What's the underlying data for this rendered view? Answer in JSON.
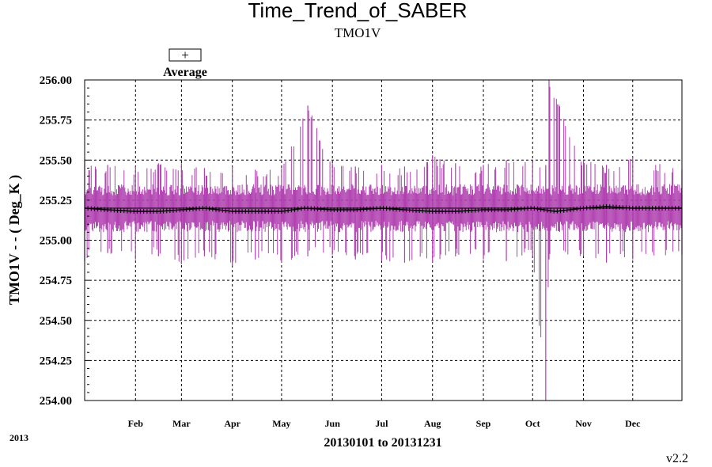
{
  "chart_data": {
    "type": "line",
    "title": "Time_Trend_of_SABER",
    "subtitle": "TMO1V",
    "ylabel": "TMO1V  - - ( Deg_K )",
    "xlabel": "20130101 to 20131231",
    "year_label": "2013",
    "version": "v2.2",
    "legend": {
      "entries": [
        {
          "symbol": "+",
          "label": "Average"
        }
      ],
      "placement": "top-left"
    },
    "ylim": [
      254.0,
      256.0
    ],
    "yticks": [
      "256.00",
      "255.75",
      "255.50",
      "255.25",
      "255.00",
      "254.75",
      "254.50",
      "254.25",
      "254.00"
    ],
    "xlim": [
      "2013-01-01",
      "2013-12-31"
    ],
    "xticks": [
      "Feb",
      "Mar",
      "Apr",
      "May",
      "Jun",
      "Jul",
      "Aug",
      "Sep",
      "Oct",
      "Nov",
      "Dec"
    ],
    "xtick_dates": [
      "2013-02-01",
      "2013-03-01",
      "2013-04-01",
      "2013-05-01",
      "2013-06-01",
      "2013-07-01",
      "2013-08-01",
      "2013-09-01",
      "2013-10-01",
      "2013-11-01",
      "2013-12-01"
    ],
    "grid": true,
    "series": [
      {
        "name": "Average",
        "color": "#000000",
        "x": [
          "2013-01-01",
          "2013-01-15",
          "2013-02-01",
          "2013-02-15",
          "2013-03-01",
          "2013-03-15",
          "2013-04-01",
          "2013-04-15",
          "2013-05-01",
          "2013-05-15",
          "2013-06-01",
          "2013-06-15",
          "2013-07-01",
          "2013-07-15",
          "2013-08-01",
          "2013-08-15",
          "2013-09-01",
          "2013-09-15",
          "2013-10-01",
          "2013-10-15",
          "2013-11-01",
          "2013-11-15",
          "2013-12-01",
          "2013-12-31"
        ],
        "y": [
          255.2,
          255.19,
          255.18,
          255.18,
          255.19,
          255.2,
          255.18,
          255.18,
          255.18,
          255.2,
          255.19,
          255.19,
          255.2,
          255.19,
          255.18,
          255.18,
          255.19,
          255.19,
          255.2,
          255.18,
          255.2,
          255.21,
          255.2,
          255.2
        ]
      }
    ],
    "range": {
      "color": "#b040b0",
      "x": [
        "2013-01-01",
        "2013-01-15",
        "2013-02-01",
        "2013-02-15",
        "2013-03-01",
        "2013-03-15",
        "2013-04-01",
        "2013-04-15",
        "2013-05-01",
        "2013-05-17",
        "2013-06-01",
        "2013-06-15",
        "2013-07-01",
        "2013-07-15",
        "2013-08-01",
        "2013-08-15",
        "2013-09-01",
        "2013-09-15",
        "2013-10-01",
        "2013-10-09",
        "2013-10-11",
        "2013-11-01",
        "2013-11-15",
        "2013-12-01",
        "2013-12-31"
      ],
      "max": [
        255.5,
        255.47,
        255.46,
        255.48,
        255.48,
        255.45,
        255.46,
        255.44,
        255.45,
        255.84,
        255.48,
        255.46,
        255.47,
        255.46,
        255.53,
        255.48,
        255.47,
        255.5,
        255.49,
        255.47,
        256.0,
        255.5,
        255.47,
        255.52,
        255.44
      ],
      "min": [
        254.87,
        254.92,
        254.88,
        254.9,
        254.85,
        254.9,
        254.84,
        254.88,
        254.86,
        254.9,
        254.91,
        254.88,
        254.87,
        254.86,
        254.86,
        254.9,
        254.88,
        254.87,
        254.9,
        254.0,
        254.88,
        254.9,
        254.86,
        254.88,
        254.91
      ]
    }
  }
}
